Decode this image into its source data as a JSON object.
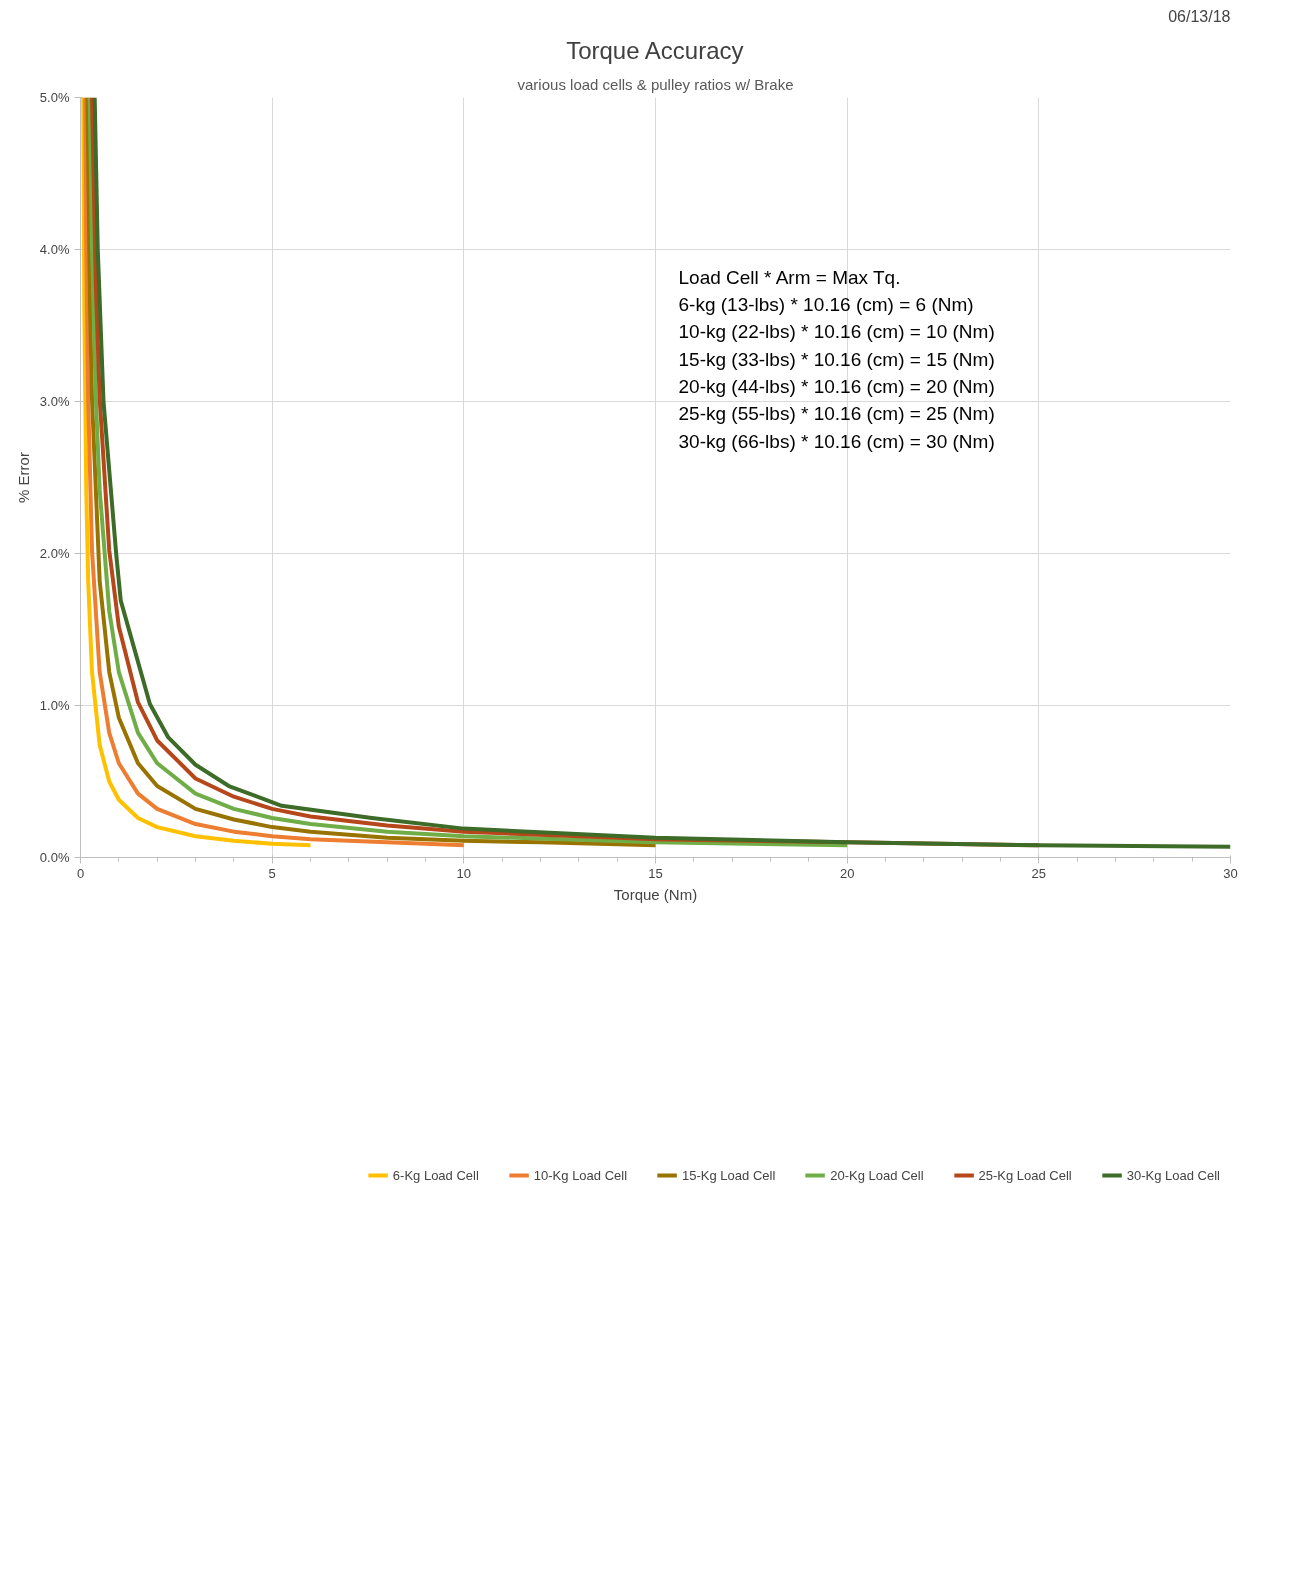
{
  "chart_data": {
    "type": "line",
    "title": "Torque Accuracy",
    "subtitle": "various load cells & pulley ratios w/ Brake",
    "xlabel": "Torque (Nm)",
    "ylabel": "% Error",
    "annotations": [
      "06/13/18",
      "Load Cell          *   Arm           =   Max Tq.",
      "6-kg (13-lbs)    *   10.16 (cm)  =   6 (Nm)",
      "10-kg (22-lbs)  *   10.16 (cm)  =  10 (Nm)",
      "15-kg (33-lbs)  *   10.16 (cm)  =  15 (Nm)",
      "20-kg (44-lbs)  *   10.16 (cm)  =  20 (Nm)",
      "25-kg (55-lbs)  *   10.16 (cm)  =  25 (Nm)",
      "30-kg (66-lbs)  *   10.16 (cm)  =  30 (Nm)"
    ],
    "xlim": [
      0,
      30
    ],
    "xticks": [
      0,
      5,
      10,
      15,
      20,
      25,
      30
    ],
    "ylim": [
      0,
      5
    ],
    "yticks": [
      {
        "value": 0,
        "label": "0.0%"
      },
      {
        "value": 1,
        "label": "1.0%"
      },
      {
        "value": 2,
        "label": "2.0%"
      },
      {
        "value": 3,
        "label": "3.0%"
      },
      {
        "value": 4,
        "label": "4.0%"
      },
      {
        "value": 5,
        "label": "5.0%"
      }
    ],
    "grid": true,
    "legend": "bottom",
    "marker": "none",
    "line_style": "solid",
    "series": [
      {
        "name": "6-Kg Load Cell",
        "color": "#ffc000",
        "x": [
          0.072,
          0.1,
          0.15,
          0.2,
          0.3,
          0.5,
          0.75,
          1,
          1.5,
          2,
          3,
          4,
          5,
          6
        ],
        "values": [
          5.0,
          3.62,
          2.42,
          1.82,
          1.22,
          0.74,
          0.5,
          0.38,
          0.26,
          0.2,
          0.14,
          0.11,
          0.09,
          0.08
        ]
      },
      {
        "name": "10-Kg Load Cell",
        "color": "#ed7d31",
        "x": [
          0.12,
          0.15,
          0.2,
          0.3,
          0.5,
          0.75,
          1,
          1.5,
          2,
          3,
          4,
          5,
          6,
          8,
          10
        ],
        "values": [
          5.0,
          4.02,
          3.02,
          2.02,
          1.22,
          0.82,
          0.62,
          0.42,
          0.32,
          0.22,
          0.17,
          0.14,
          0.12,
          0.1,
          0.08
        ]
      },
      {
        "name": "15-Kg Load Cell",
        "color": "#997300",
        "x": [
          0.18,
          0.25,
          0.3,
          0.5,
          0.75,
          1,
          1.5,
          2,
          3,
          4,
          5,
          6,
          8,
          10,
          12,
          15
        ],
        "values": [
          5.0,
          3.62,
          3.02,
          1.82,
          1.22,
          0.92,
          0.62,
          0.47,
          0.32,
          0.25,
          0.2,
          0.17,
          0.13,
          0.11,
          0.1,
          0.08
        ]
      },
      {
        "name": "20-Kg Load Cell",
        "color": "#70ad47",
        "x": [
          0.24,
          0.3,
          0.4,
          0.5,
          0.75,
          1,
          1.5,
          2,
          3,
          4,
          5,
          6,
          8,
          10,
          15,
          20
        ],
        "values": [
          5.0,
          4.02,
          3.02,
          2.42,
          1.62,
          1.22,
          0.82,
          0.62,
          0.42,
          0.32,
          0.26,
          0.22,
          0.17,
          0.14,
          0.1,
          0.08
        ]
      },
      {
        "name": "25-Kg Load Cell",
        "color": "#b5471a",
        "x": [
          0.3,
          0.4,
          0.5,
          0.75,
          1,
          1.5,
          2,
          3,
          4,
          5,
          6,
          8,
          10,
          15,
          20,
          25
        ],
        "values": [
          5.0,
          3.77,
          3.02,
          2.02,
          1.52,
          1.02,
          0.77,
          0.52,
          0.4,
          0.32,
          0.27,
          0.21,
          0.17,
          0.12,
          0.1,
          0.08
        ]
      },
      {
        "name": "30-Kg Load Cell",
        "color": "#3d6b28",
        "x": [
          0.37,
          0.45,
          0.6,
          0.93,
          1.05,
          1.81,
          2.29,
          3,
          3.87,
          5.25,
          7.6,
          10,
          15,
          20,
          25,
          30
        ],
        "values": [
          5.0,
          4.0,
          3.0,
          2.0,
          1.69,
          1.01,
          0.79,
          0.61,
          0.47,
          0.34,
          0.26,
          0.19,
          0.13,
          0.1,
          0.08,
          0.07
        ]
      }
    ]
  }
}
